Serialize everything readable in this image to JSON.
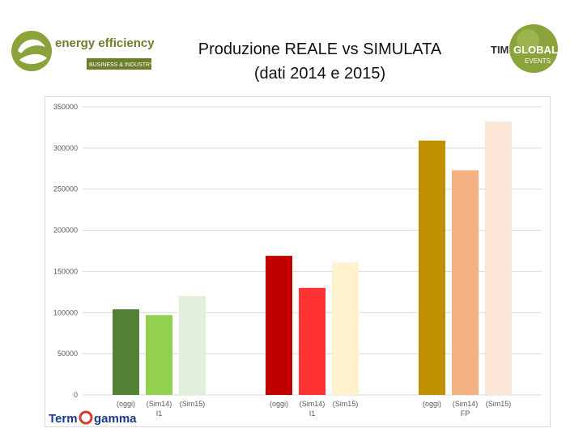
{
  "header": {
    "title_line1": "Produzione REALE vs SIMULATA",
    "title_line2": "(dati 2014 e 2015)"
  },
  "logos": {
    "left": {
      "line1": "energy efficiency",
      "line2": "BUSINESS & INDUSTRY",
      "icon": "ee-leaf-logo",
      "color": "#7a9a3a"
    },
    "right": {
      "prefix": "TIM",
      "main": "GLOBAL",
      "sub": "EVENTS",
      "icon": "timglobal-globe-logo",
      "color": "#8aa33b"
    },
    "footer": {
      "left_text": "Term",
      "right_text": "gamma",
      "icon": "termogamma-logo",
      "color": "#1a3a8a",
      "accent": "#d63a2a"
    }
  },
  "chart_data": {
    "type": "bar",
    "title": "",
    "xlabel": "",
    "ylabel": "",
    "ylim": [
      0,
      350000
    ],
    "yticks": [
      0,
      50000,
      100000,
      150000,
      200000,
      250000,
      300000,
      350000
    ],
    "ytick_labels": [
      "0",
      "50000",
      "100000",
      "150000",
      "200000",
      "250000",
      "300000",
      "350000"
    ],
    "grid": true,
    "groups": [
      {
        "label": "I1",
        "bars": [
          {
            "label": "(oggi)",
            "value": 104000,
            "color": "#538135"
          },
          {
            "label": "(Sim14)",
            "value": 97000,
            "color": "#92d050"
          },
          {
            "label": "(Sim15)",
            "value": 120000,
            "color": "#e2efda"
          }
        ]
      },
      {
        "label": "I1",
        "bars": [
          {
            "label": "(oggi)",
            "value": 169000,
            "color": "#c00000"
          },
          {
            "label": "(Sim14)",
            "value": 130000,
            "color": "#ff3333"
          },
          {
            "label": "(Sim15)",
            "value": 161000,
            "color": "#fff2cc"
          }
        ]
      },
      {
        "label": "FP",
        "bars": [
          {
            "label": "(oggi)",
            "value": 309000,
            "color": "#bf9000"
          },
          {
            "label": "(Sim14)",
            "value": 273000,
            "color": "#f4b183"
          },
          {
            "label": "(Sim15)",
            "value": 332000,
            "color": "#fbe5d6"
          }
        ]
      }
    ]
  }
}
